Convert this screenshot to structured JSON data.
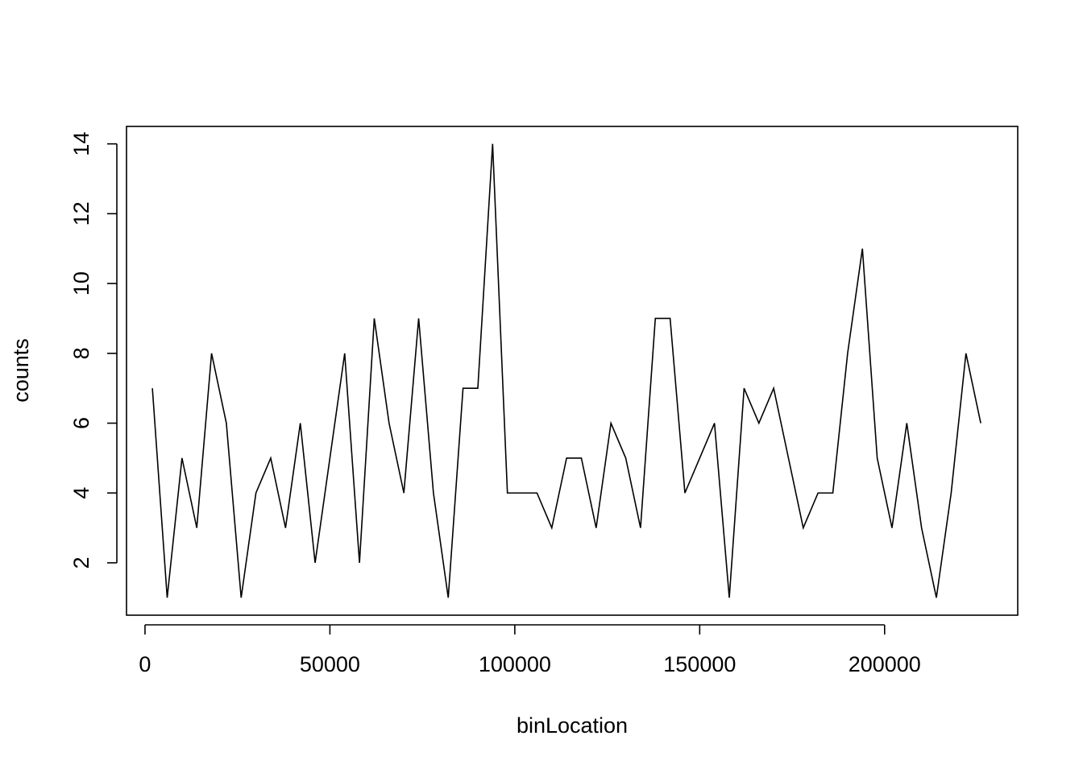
{
  "chart_data": {
    "type": "line",
    "title": "",
    "xlabel": "binLocation",
    "ylabel": "counts",
    "xlim": [
      -5000,
      236000
    ],
    "ylim": [
      0.5,
      14.5
    ],
    "xticks": [
      0,
      50000,
      100000,
      150000,
      200000
    ],
    "yticks": [
      2,
      4,
      6,
      8,
      10,
      12,
      14
    ],
    "xtick_labels": [
      "0",
      "50000",
      "100000",
      "150000",
      "200000"
    ],
    "ytick_labels": [
      "2",
      "4",
      "6",
      "8",
      "10",
      "12",
      "14"
    ],
    "grid": false,
    "legend": "none",
    "line_color": "#000000",
    "series": [
      {
        "x": [
          2000,
          6000,
          10000,
          14000,
          18000,
          22000,
          26000,
          30000,
          34000,
          38000,
          42000,
          46000,
          50000,
          54000,
          58000,
          62000,
          66000,
          70000,
          74000,
          78000,
          82000,
          86000,
          90000,
          94000,
          98000,
          102000,
          106000,
          110000,
          114000,
          118000,
          122000,
          126000,
          130000,
          134000,
          138000,
          142000,
          146000,
          150000,
          154000,
          158000,
          162000,
          166000,
          170000,
          174000,
          178000,
          182000,
          186000,
          190000,
          194000,
          198000,
          202000,
          206000,
          210000,
          214000,
          218000,
          222000,
          226000
        ],
        "values": [
          7,
          1,
          5,
          3,
          8,
          6,
          1,
          4,
          5,
          3,
          6,
          2,
          5,
          8,
          2,
          9,
          6,
          4,
          9,
          4,
          1,
          7,
          7,
          14,
          4,
          4,
          4,
          3,
          5,
          5,
          3,
          6,
          5,
          3,
          9,
          9,
          4,
          5,
          6,
          1,
          7,
          6,
          7,
          5,
          3,
          4,
          4,
          8,
          11,
          5,
          3,
          6,
          3,
          1,
          4,
          8,
          6
        ]
      }
    ]
  }
}
